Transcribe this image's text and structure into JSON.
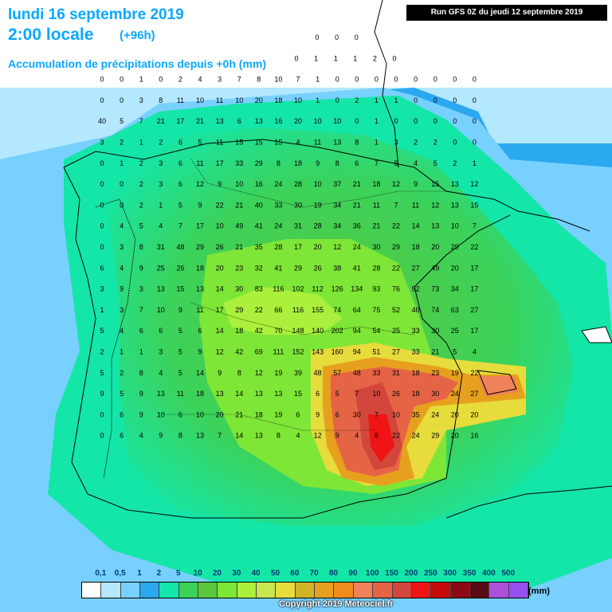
{
  "header": {
    "date": "lundi 16 septembre 2019",
    "time": "2:00 locale",
    "offset": "(+96h)",
    "subtitle": "Accumulation de précipitations depuis +0h (mm)",
    "run": "Run GFS 0Z du jeudi 12 septembre 2019"
  },
  "legend": {
    "unit": "(mm)",
    "labels": [
      "0,1",
      "0,5",
      "1",
      "2",
      "5",
      "10",
      "20",
      "30",
      "40",
      "50",
      "60",
      "70",
      "80",
      "90",
      "100",
      "150",
      "200",
      "250",
      "300",
      "350",
      "400",
      "500"
    ],
    "colors": [
      "#ffffff",
      "#b4e8ff",
      "#78d0ff",
      "#2aa8f0",
      "#14e6a8",
      "#3cd25a",
      "#5ac83c",
      "#7ee636",
      "#aaf03c",
      "#c8e650",
      "#e6dc3c",
      "#d2b428",
      "#e6a01e",
      "#f08c1e",
      "#f0825a",
      "#e66446",
      "#d2463c",
      "#f01414",
      "#c80a0a",
      "#8c0a14",
      "#5a0a14",
      "#aa50dc",
      "#9650f0"
    ]
  },
  "copyright": "Copyright 2019 Meteociel.fr",
  "map_values": [
    {
      "r": 0,
      "v": [
        "0",
        "0",
        "0"
      ]
    },
    {
      "r": 1,
      "v": [
        "0",
        "1",
        "1",
        "1",
        "2",
        "0"
      ]
    },
    {
      "r": 2,
      "v": [
        "0",
        "0",
        "1",
        "0",
        "2",
        "4",
        "3",
        "7",
        "8",
        "10",
        "7",
        "1",
        "0",
        "0",
        "0",
        "0",
        "0",
        "0",
        "0",
        "0"
      ]
    },
    {
      "r": 3,
      "v": [
        "0",
        "0",
        "3",
        "8",
        "11",
        "10",
        "11",
        "10",
        "20",
        "18",
        "10",
        "1",
        "0",
        "2",
        "1",
        "1",
        "0",
        "0",
        "0",
        "0"
      ]
    },
    {
      "r": 4,
      "v": [
        "40",
        "5",
        "7",
        "21",
        "17",
        "21",
        "13",
        "6",
        "13",
        "16",
        "20",
        "10",
        "10",
        "0",
        "1",
        "0",
        "0",
        "0",
        "0",
        "0"
      ]
    },
    {
      "r": 5,
      "v": [
        "3",
        "2",
        "1",
        "2",
        "6",
        "5",
        "11",
        "15",
        "15",
        "15",
        "4",
        "11",
        "13",
        "8",
        "1",
        "3",
        "2",
        "2",
        "0",
        "0"
      ]
    },
    {
      "r": 6,
      "v": [
        "0",
        "1",
        "2",
        "3",
        "6",
        "11",
        "17",
        "33",
        "29",
        "8",
        "18",
        "9",
        "8",
        "6",
        "7",
        "5",
        "4",
        "5",
        "2",
        "1"
      ]
    },
    {
      "r": 7,
      "v": [
        "0",
        "0",
        "2",
        "3",
        "6",
        "12",
        "9",
        "10",
        "16",
        "24",
        "28",
        "10",
        "37",
        "21",
        "18",
        "12",
        "9",
        "15",
        "13",
        "12"
      ]
    },
    {
      "r": 8,
      "v": [
        "0",
        "0",
        "2",
        "1",
        "5",
        "9",
        "22",
        "21",
        "40",
        "33",
        "30",
        "19",
        "34",
        "21",
        "11",
        "7",
        "11",
        "12",
        "13",
        "15"
      ]
    },
    {
      "r": 9,
      "v": [
        "0",
        "4",
        "5",
        "4",
        "7",
        "17",
        "10",
        "49",
        "41",
        "24",
        "31",
        "28",
        "34",
        "36",
        "21",
        "22",
        "14",
        "13",
        "10",
        "7"
      ]
    },
    {
      "r": 10,
      "v": [
        "0",
        "3",
        "8",
        "31",
        "48",
        "29",
        "26",
        "21",
        "35",
        "28",
        "17",
        "20",
        "12",
        "24",
        "30",
        "29",
        "18",
        "20",
        "29",
        "22"
      ]
    },
    {
      "r": 11,
      "v": [
        "6",
        "4",
        "9",
        "25",
        "26",
        "18",
        "20",
        "23",
        "32",
        "41",
        "29",
        "26",
        "38",
        "41",
        "28",
        "22",
        "27",
        "49",
        "20",
        "17"
      ]
    },
    {
      "r": 12,
      "v": [
        "3",
        "9",
        "3",
        "13",
        "15",
        "13",
        "14",
        "30",
        "83",
        "116",
        "102",
        "112",
        "126",
        "134",
        "93",
        "76",
        "92",
        "73",
        "34",
        "17"
      ]
    },
    {
      "r": 13,
      "v": [
        "1",
        "3",
        "7",
        "10",
        "9",
        "11",
        "17",
        "29",
        "22",
        "66",
        "116",
        "155",
        "74",
        "64",
        "75",
        "52",
        "40",
        "74",
        "63",
        "27"
      ]
    },
    {
      "r": 14,
      "v": [
        "5",
        "4",
        "6",
        "6",
        "5",
        "6",
        "14",
        "18",
        "42",
        "70",
        "148",
        "140",
        "202",
        "94",
        "54",
        "25",
        "33",
        "30",
        "25",
        "17"
      ]
    },
    {
      "r": 15,
      "v": [
        "2",
        "1",
        "1",
        "3",
        "5",
        "9",
        "12",
        "42",
        "69",
        "111",
        "152",
        "143",
        "160",
        "94",
        "51",
        "27",
        "33",
        "21",
        "5",
        "4"
      ]
    },
    {
      "r": 16,
      "v": [
        "5",
        "2",
        "8",
        "4",
        "5",
        "14",
        "9",
        "8",
        "12",
        "19",
        "39",
        "48",
        "57",
        "48",
        "33",
        "31",
        "18",
        "23",
        "19",
        "22"
      ]
    },
    {
      "r": 17,
      "v": [
        "9",
        "5",
        "9",
        "13",
        "11",
        "18",
        "13",
        "14",
        "13",
        "13",
        "15",
        "6",
        "5",
        "7",
        "10",
        "26",
        "18",
        "30",
        "24",
        "27"
      ]
    },
    {
      "r": 18,
      "v": [
        "0",
        "6",
        "9",
        "10",
        "6",
        "10",
        "20",
        "21",
        "18",
        "19",
        "6",
        "9",
        "6",
        "30",
        "7",
        "10",
        "35",
        "24",
        "20",
        "20"
      ]
    },
    {
      "r": 19,
      "v": [
        "0",
        "6",
        "4",
        "9",
        "8",
        "13",
        "7",
        "14",
        "13",
        "8",
        "4",
        "12",
        "9",
        "4",
        "6",
        "22",
        "24",
        "29",
        "20",
        "16"
      ]
    }
  ]
}
